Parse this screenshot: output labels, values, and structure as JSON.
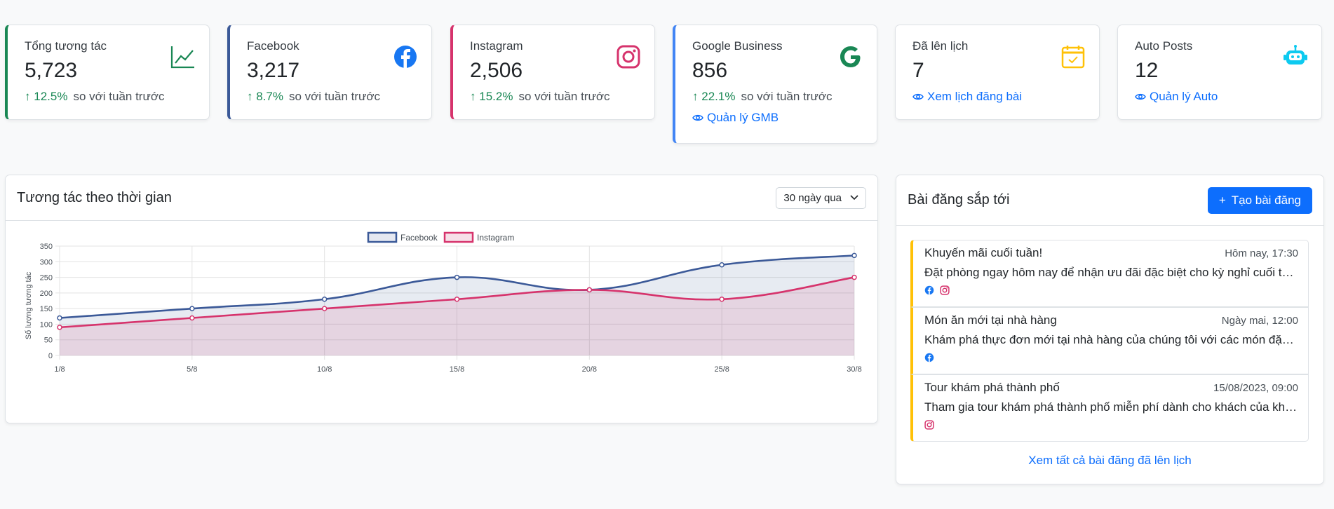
{
  "stats": [
    {
      "title": "Tổng tương tác",
      "value": "5,723",
      "change": "12.5%",
      "change_text": "so với tuần trước",
      "icon": "chart-line-icon",
      "accent": "#198754"
    },
    {
      "title": "Facebook",
      "value": "3,217",
      "change": "8.7%",
      "change_text": "so với tuần trước",
      "icon": "facebook-icon",
      "accent": "#3b5998"
    },
    {
      "title": "Instagram",
      "value": "2,506",
      "change": "15.2%",
      "change_text": "so với tuần trước",
      "icon": "instagram-icon",
      "accent": "#d6336c"
    },
    {
      "title": "Google Business",
      "value": "856",
      "change": "22.1%",
      "change_text": "so với tuần trước",
      "link": "Quản lý GMB",
      "icon": "google-icon",
      "accent": "#4285f4"
    },
    {
      "title": "Đã lên lịch",
      "value": "7",
      "link": "Xem lịch đăng bài",
      "icon": "calendar-check-icon",
      "accent": "#ffc107"
    },
    {
      "title": "Auto Posts",
      "value": "12",
      "link": "Quản lý Auto",
      "icon": "robot-icon",
      "accent": "#0dcaf0"
    }
  ],
  "chart_panel": {
    "title": "Tương tác theo thời gian",
    "period": "30 ngày qua"
  },
  "chart_data": {
    "type": "line",
    "x": [
      "1/8",
      "5/8",
      "10/8",
      "15/8",
      "20/8",
      "25/8",
      "30/8"
    ],
    "series": [
      {
        "name": "Facebook",
        "values": [
          120,
          150,
          180,
          250,
          210,
          290,
          320
        ],
        "color": "#3b5998"
      },
      {
        "name": "Instagram",
        "values": [
          90,
          120,
          150,
          180,
          210,
          180,
          250
        ],
        "color": "#d6336c"
      }
    ],
    "ylabel": "Số lượng tương tác",
    "ylim": [
      0,
      350
    ],
    "yticks": [
      "0",
      "50",
      "100",
      "150",
      "200",
      "250",
      "300",
      "350"
    ],
    "fill": true,
    "grid": true,
    "legend": "top"
  },
  "upcoming": {
    "title": "Bài đăng sắp tới",
    "create_label": "Tạo bài đăng",
    "posts": [
      {
        "title": "Khuyến mãi cuối tuần!",
        "time": "Hôm nay, 17:30",
        "desc": "Đặt phòng ngay hôm nay để nhận ưu đãi đặc biệt cho kỳ nghỉ cuối tuần...",
        "platforms": [
          "facebook-icon",
          "instagram-icon"
        ]
      },
      {
        "title": "Món ăn mới tại nhà hàng",
        "time": "Ngày mai, 12:00",
        "desc": "Khám phá thực đơn mới tại nhà hàng của chúng tôi với các món đặc sản...",
        "platforms": [
          "facebook-icon"
        ]
      },
      {
        "title": "Tour khám phá thành phố",
        "time": "15/08/2023, 09:00",
        "desc": "Tham gia tour khám phá thành phố miễn phí dành cho khách của khách ...",
        "platforms": [
          "instagram-icon"
        ]
      }
    ],
    "view_all": "Xem tất cả bài đăng đã lên lịch"
  }
}
